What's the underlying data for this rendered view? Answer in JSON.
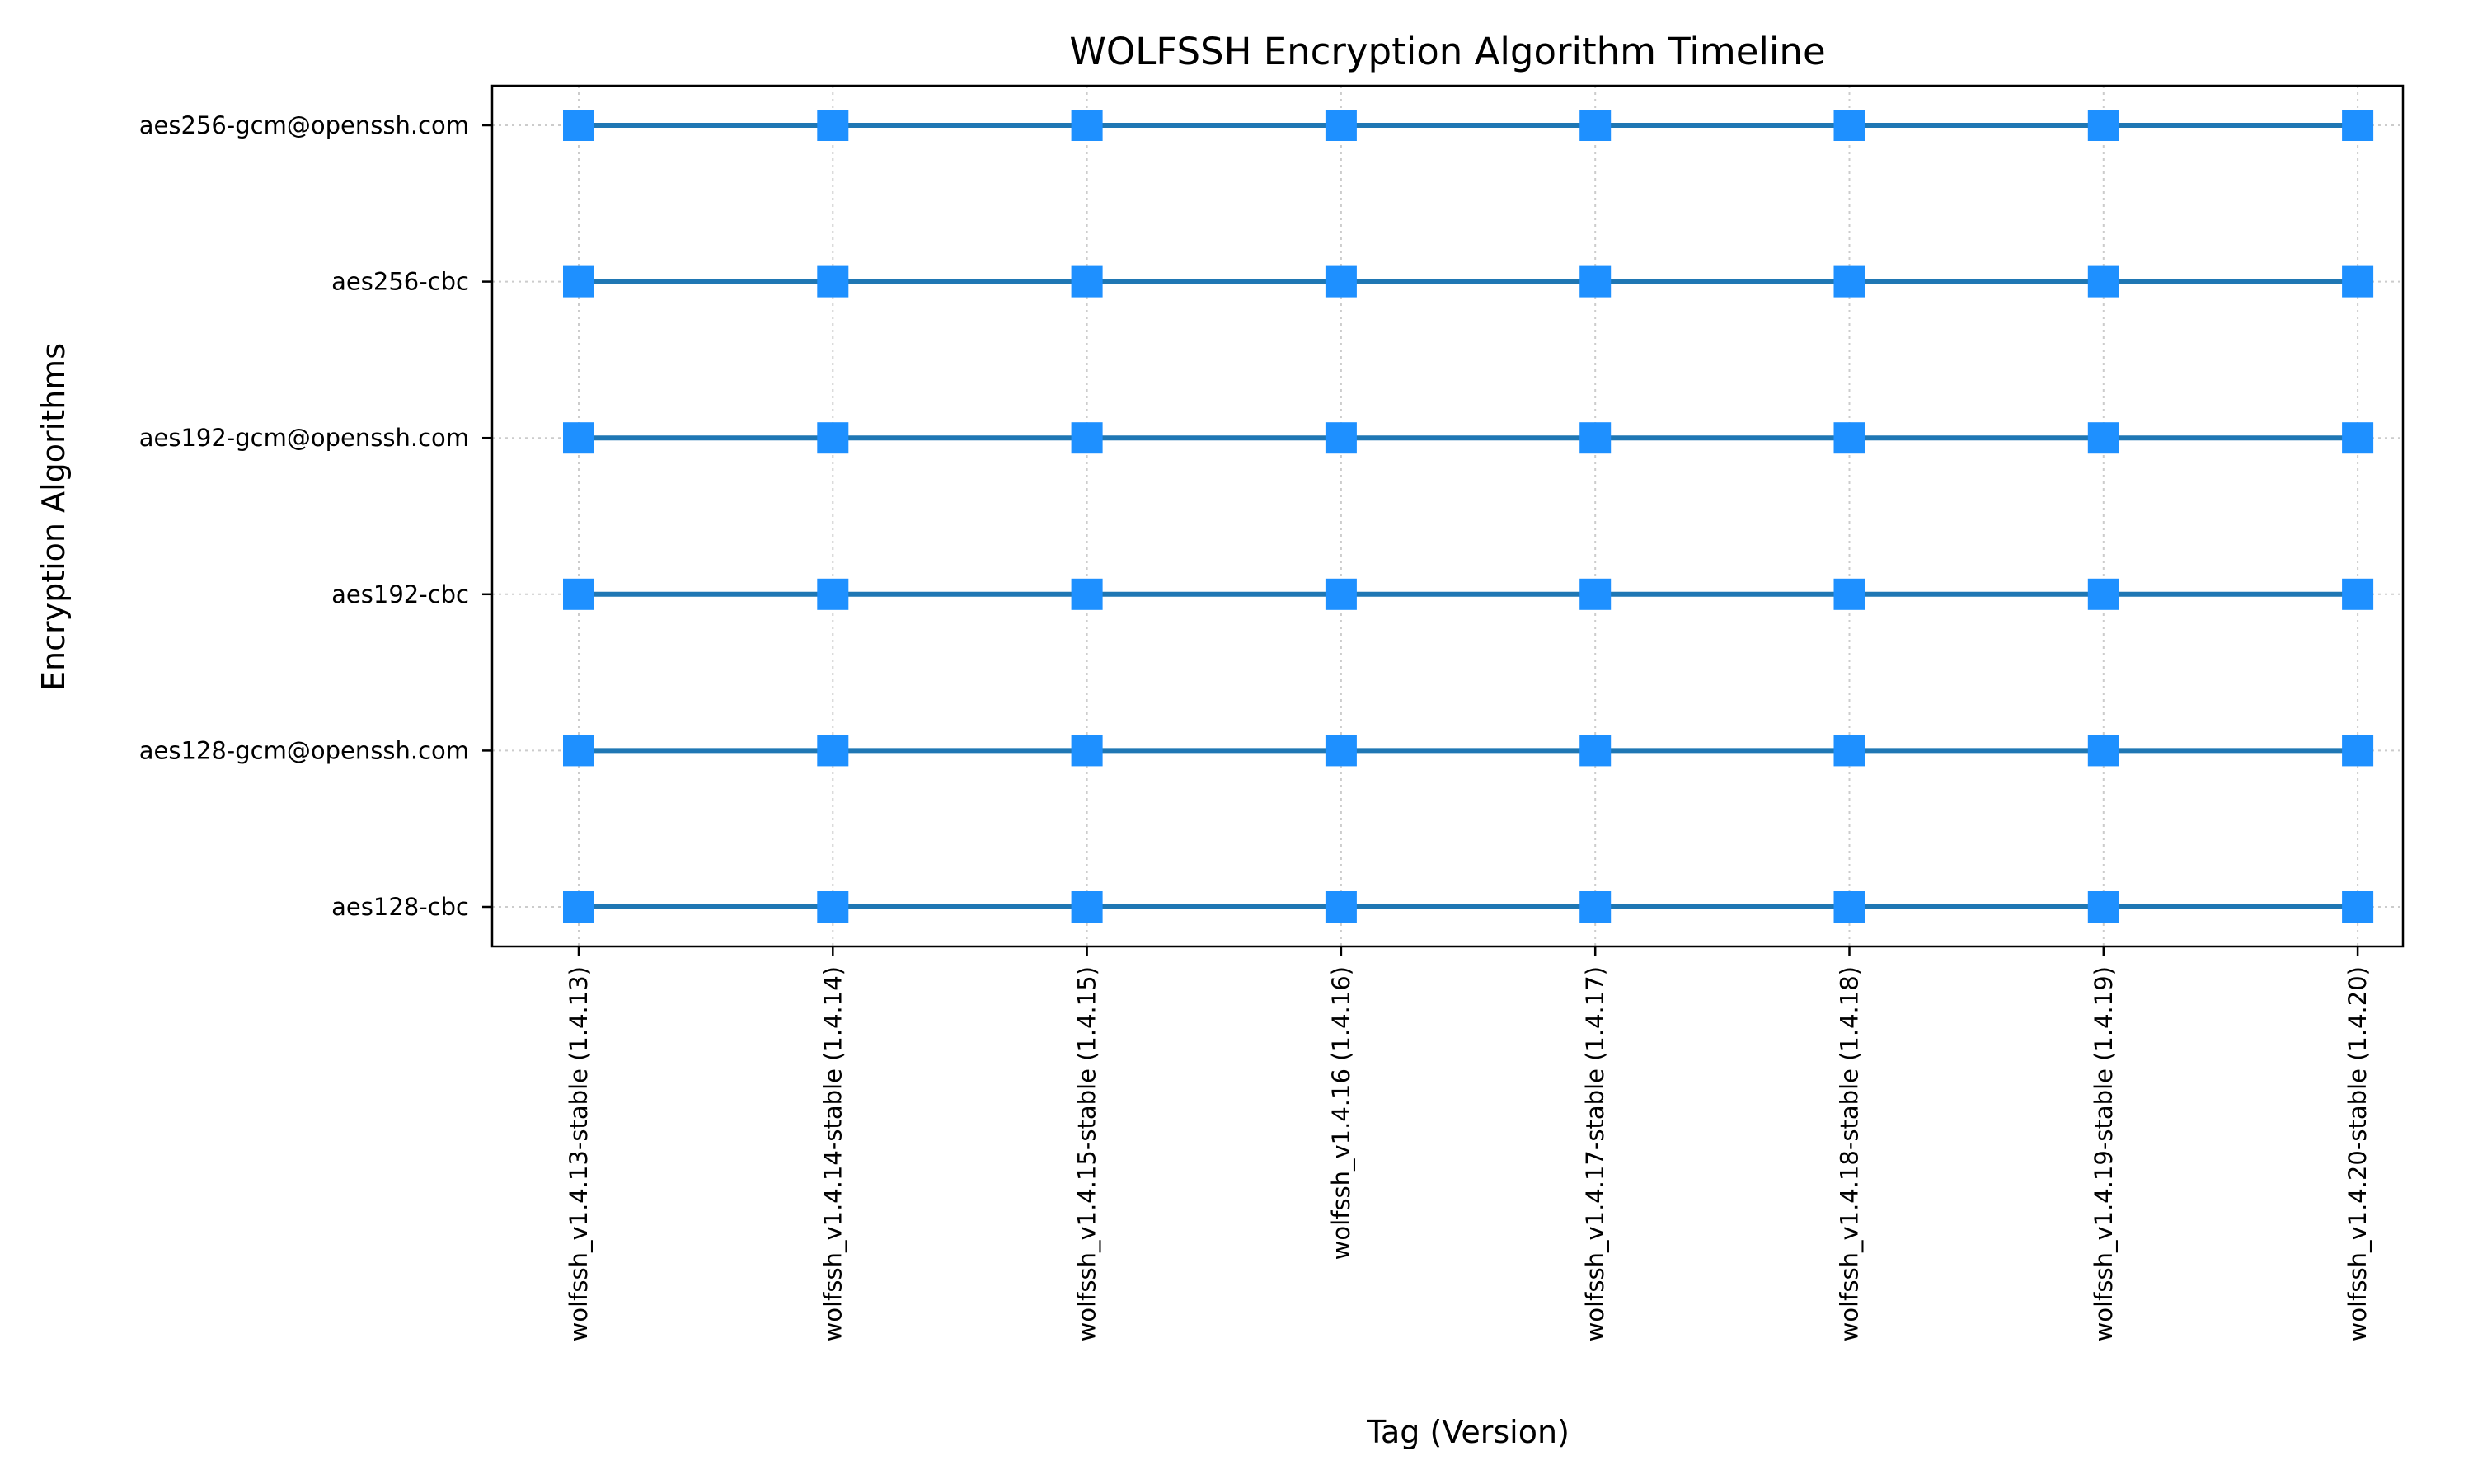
{
  "chart_data": {
    "type": "line",
    "title": "WOLFSSH Encryption Algorithm Timeline",
    "xlabel": "Tag (Version)",
    "ylabel": "Encryption Algorithms",
    "x": [
      "wolfssh_v1.4.13-stable (1.4.13)",
      "wolfssh_v1.4.14-stable (1.4.14)",
      "wolfssh_v1.4.15-stable (1.4.15)",
      "wolfssh_v1.4.16 (1.4.16)",
      "wolfssh_v1.4.17-stable (1.4.17)",
      "wolfssh_v1.4.18-stable (1.4.18)",
      "wolfssh_v1.4.19-stable (1.4.19)",
      "wolfssh_v1.4.20-stable (1.4.20)"
    ],
    "y_categories": [
      "aes128-cbc",
      "aes128-gcm@openssh.com",
      "aes192-cbc",
      "aes192-gcm@openssh.com",
      "aes256-cbc",
      "aes256-gcm@openssh.com"
    ],
    "series": [
      {
        "category": "aes128-cbc",
        "present": [
          true,
          true,
          true,
          true,
          true,
          true,
          true,
          true
        ]
      },
      {
        "category": "aes128-gcm@openssh.com",
        "present": [
          true,
          true,
          true,
          true,
          true,
          true,
          true,
          true
        ]
      },
      {
        "category": "aes192-cbc",
        "present": [
          true,
          true,
          true,
          true,
          true,
          true,
          true,
          true
        ]
      },
      {
        "category": "aes192-gcm@openssh.com",
        "present": [
          true,
          true,
          true,
          true,
          true,
          true,
          true,
          true
        ]
      },
      {
        "category": "aes256-cbc",
        "present": [
          true,
          true,
          true,
          true,
          true,
          true,
          true,
          true
        ]
      },
      {
        "category": "aes256-gcm@openssh.com",
        "present": [
          true,
          true,
          true,
          true,
          true,
          true,
          true,
          true
        ]
      }
    ],
    "grid": true,
    "grid_style": "dotted",
    "marker": "square",
    "colors": {
      "line": "#1f77b4",
      "marker": "#1e90ff",
      "grid": "#cccccc",
      "axes": "#000000"
    }
  }
}
